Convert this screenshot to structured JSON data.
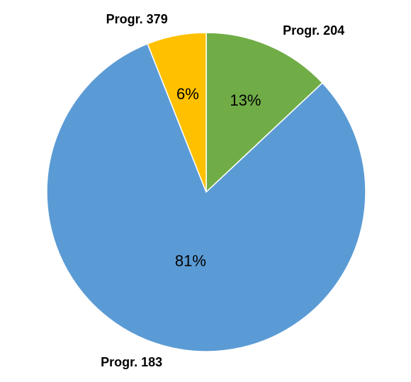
{
  "chart_data": {
    "type": "pie",
    "categories": [
      "Progr. 204",
      "Progr. 183",
      "Progr. 379"
    ],
    "values": [
      13,
      81,
      6
    ],
    "value_labels": [
      "13%",
      "81%",
      "6%"
    ],
    "colors": [
      "#70ad47",
      "#5b9bd5",
      "#ffc000"
    ]
  }
}
